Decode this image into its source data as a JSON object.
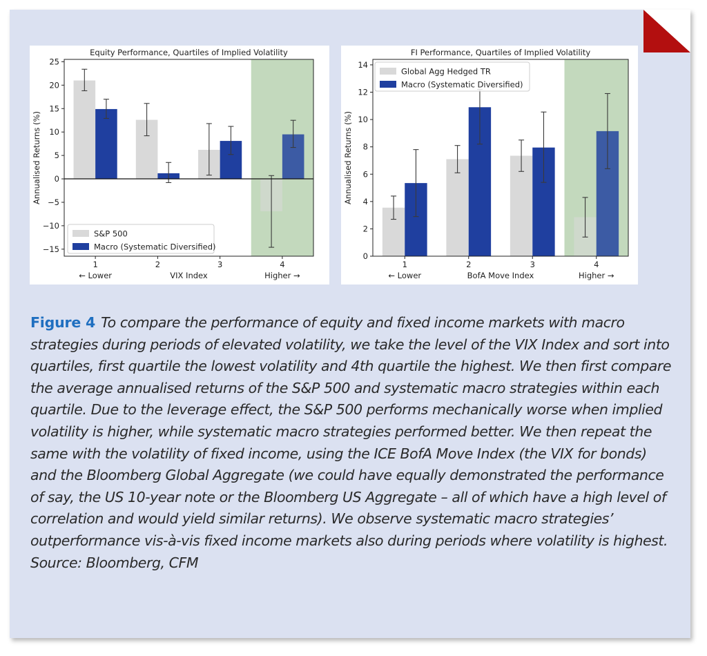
{
  "colors": {
    "background": "#dbe1f1",
    "light_bar": "#d9d9d9",
    "macro_bar": "#1f3f9f",
    "shaded_region": "#c3d9bd",
    "corner": "#b30f0f",
    "figure_label": "#1f6fc0"
  },
  "figure": {
    "label": "Figure 4",
    "caption": "To compare the performance of equity and fixed income markets with macro strategies during periods of elevated volatility, we take the level of the VIX Index and sort into quartiles, first quartile the lowest volatility and 4th quartile the highest. We then first compare the average annualised returns of the S&P 500 and systematic macro strategies within each quartile. Due to the leverage effect, the S&P 500 performs mechanically worse when implied volatility is higher, while systematic macro strategies performed better. We then repeat the same with the volatility of fixed income, using the ICE BofA Move Index (the VIX for bonds) and the Bloomberg Global Aggregate (we could have equally demonstrated the performance of say, the US 10-year note or the Bloomberg US Aggregate – all of which have a high level of correlation and would yield similar returns). We observe systematic macro strategies’ outperformance vis-à-vis fixed income markets also during periods where volatility is highest. Source: Bloomberg, CFM"
  },
  "chart_data": [
    {
      "type": "bar",
      "title": "Equity Performance, Quartiles of Implied Volatility",
      "xlabel": "VIX Index",
      "ylabel": "Annualised Returns (%)",
      "categories": [
        "1",
        "2",
        "3",
        "4"
      ],
      "category_sublabels": [
        "← Lower",
        "",
        "",
        "Higher →"
      ],
      "ylim": [
        -16.5,
        25.5
      ],
      "yticks": [
        25,
        20,
        15,
        10,
        5,
        0,
        -5,
        -10,
        -15
      ],
      "zero_line": true,
      "shaded_category": "4",
      "legend_position": "lower-left",
      "series": [
        {
          "name": "S&P 500",
          "color": "#d9d9d9",
          "values": [
            21.0,
            12.6,
            6.2,
            -6.9
          ],
          "err_low": [
            18.8,
            9.2,
            0.8,
            -14.6
          ],
          "err_high": [
            23.4,
            16.1,
            11.8,
            0.7
          ]
        },
        {
          "name": "Macro (Systematic Diversified)",
          "color": "#1f3f9f",
          "values": [
            14.9,
            1.2,
            8.1,
            9.5
          ],
          "err_low": [
            12.9,
            -0.8,
            5.2,
            6.7
          ],
          "err_high": [
            17.0,
            3.5,
            11.2,
            12.5
          ]
        }
      ]
    },
    {
      "type": "bar",
      "title": "FI Performance, Quartiles of Implied Volatility",
      "xlabel": "BofA Move Index",
      "ylabel": "Annualised Returns (%)",
      "categories": [
        "1",
        "2",
        "3",
        "4"
      ],
      "category_sublabels": [
        "← Lower",
        "",
        "",
        "Higher →"
      ],
      "ylim": [
        0,
        14.4
      ],
      "yticks": [
        14,
        12,
        10,
        8,
        6,
        4,
        2,
        0
      ],
      "zero_line": false,
      "shaded_category": "4",
      "legend_position": "upper-left",
      "series": [
        {
          "name": "Global Agg Hedged TR",
          "color": "#d9d9d9",
          "values": [
            3.55,
            7.1,
            7.35,
            2.85
          ],
          "err_low": [
            2.7,
            6.1,
            6.2,
            1.4
          ],
          "err_high": [
            4.4,
            8.1,
            8.5,
            4.3
          ]
        },
        {
          "name": "Macro (Systematic Diversified)",
          "color": "#1f3f9f",
          "values": [
            5.35,
            10.9,
            7.95,
            9.15
          ],
          "err_low": [
            2.9,
            8.2,
            5.4,
            6.4
          ],
          "err_high": [
            7.8,
            12.2,
            10.55,
            11.9
          ]
        }
      ]
    }
  ]
}
